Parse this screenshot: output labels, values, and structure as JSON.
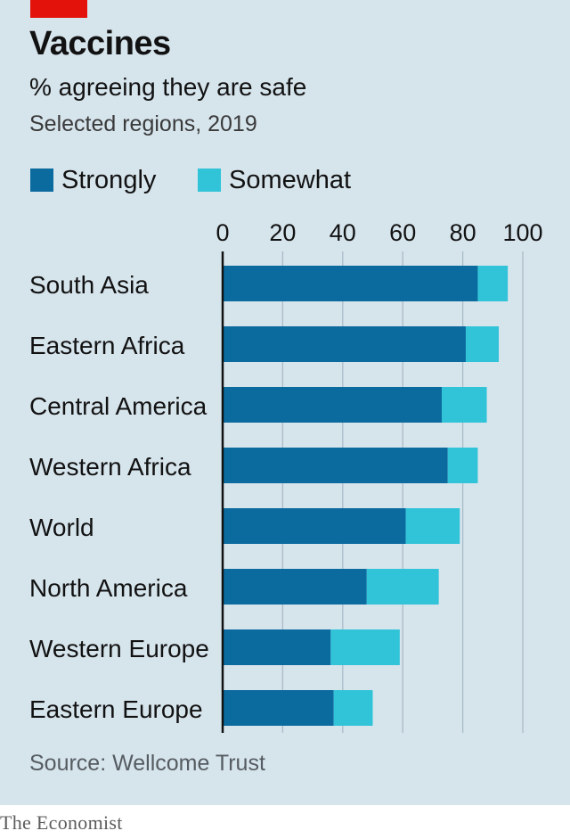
{
  "header": {
    "title": "Vaccines",
    "subtitle": "% agreeing they are safe",
    "note": "Selected regions, 2019"
  },
  "legend": {
    "strongly_label": "Strongly",
    "somewhat_label": "Somewhat"
  },
  "footer": {
    "source": "Source: Wellcome Trust",
    "brand": "The Economist"
  },
  "colors": {
    "strongly": "#0b6a9e",
    "somewhat": "#31c3d8",
    "background": "#d6e4ec",
    "brand_red": "#e3120b"
  },
  "chart_data": {
    "type": "bar",
    "orientation": "horizontal",
    "stacked": true,
    "categories": [
      "South Asia",
      "Eastern Africa",
      "Central America",
      "Western Africa",
      "World",
      "North America",
      "Western Europe",
      "Eastern Europe"
    ],
    "series": [
      {
        "name": "Strongly",
        "values": [
          85,
          81,
          73,
          75,
          61,
          48,
          36,
          37
        ]
      },
      {
        "name": "Somewhat",
        "values": [
          10,
          11,
          15,
          10,
          18,
          24,
          23,
          13
        ]
      }
    ],
    "xlim": [
      0,
      100
    ],
    "xticks": [
      0,
      20,
      40,
      60,
      80,
      100
    ],
    "x_axis_position": "top",
    "grid": true,
    "legend_position": "top-left"
  }
}
